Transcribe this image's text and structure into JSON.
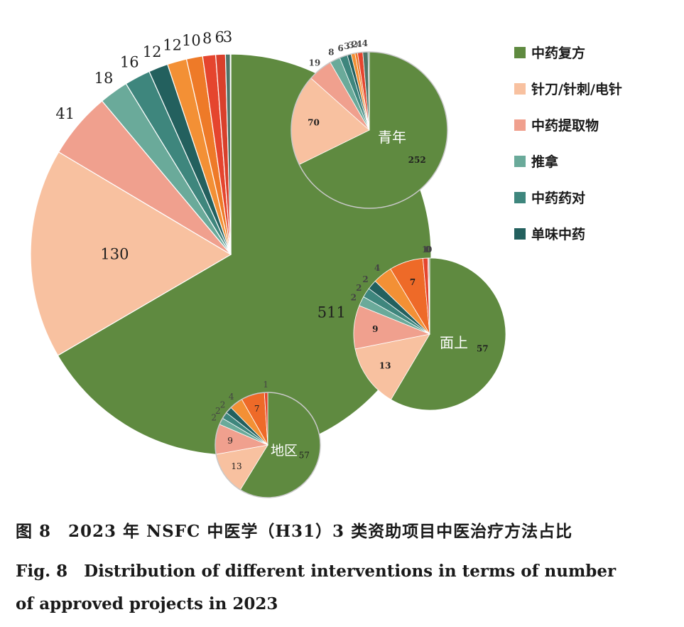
{
  "legend": [
    {
      "label": "中药复方",
      "color": "#5f8a40"
    },
    {
      "label": "针刀/针刺/电针",
      "color": "#f8c1a0"
    },
    {
      "label": "中药提取物",
      "color": "#f0a08e"
    },
    {
      "label": "推拿",
      "color": "#6aaa9a"
    },
    {
      "label": "中药药对",
      "color": "#3e867d"
    },
    {
      "label": "单味中药",
      "color": "#23605e"
    }
  ],
  "chart_data": [
    {
      "type": "pie",
      "name": "",
      "labels": [
        "中药复方",
        "针刀/针刺/电针",
        "中药提取物",
        "推拿",
        "中药药对",
        "单味中药",
        "",
        "",
        "",
        "",
        "",
        ""
      ],
      "values": [
        511,
        130,
        41,
        18,
        16,
        12,
        12,
        10,
        8,
        6,
        3,
        0.3
      ],
      "value_labels": [
        "511",
        "130",
        "41",
        "18",
        "16",
        "12",
        "12",
        "10",
        "8",
        "6",
        "3",
        ""
      ],
      "colors": [
        "#5f8a40",
        "#f8c1a0",
        "#f0a08e",
        "#6aaa9a",
        "#3e867d",
        "#23605e",
        "#f39035",
        "#ee7a28",
        "#e5452e",
        "#d9402c",
        "#4e7467",
        "#6f8f86"
      ]
    },
    {
      "type": "pie",
      "name": "青年",
      "labels": [
        "中药复方",
        "针刀/针刺/电针",
        "中药提取物",
        "推拿",
        "中药药对",
        "单味中药",
        "",
        "",
        "",
        "",
        ""
      ],
      "values": [
        252,
        70,
        19,
        8,
        6,
        3,
        3,
        2,
        4,
        4,
        1
      ],
      "value_labels": [
        "252",
        "70",
        "19",
        "8",
        "6",
        "3",
        "3",
        "2",
        "4",
        "4",
        ""
      ],
      "colors": [
        "#5f8a40",
        "#f8c1a0",
        "#f0a08e",
        "#6aaa9a",
        "#3e867d",
        "#23605e",
        "#f39035",
        "#ee7a28",
        "#e5452e",
        "#4e7467",
        "#6f8f86"
      ]
    },
    {
      "type": "pie",
      "name": "面上",
      "labels": [
        "中药复方",
        "针刀/针刺/电针",
        "中药提取物",
        "推拿",
        "中药药对",
        "单味中药",
        "",
        "",
        "",
        "",
        ""
      ],
      "values": [
        57,
        13,
        9,
        2,
        2,
        2,
        4,
        7,
        1,
        0.2,
        0.2
      ],
      "value_labels": [
        "57",
        "13",
        "9",
        "2",
        "2",
        "2",
        "4",
        "7",
        "1",
        "0",
        "0"
      ],
      "colors": [
        "#5f8a40",
        "#f8c1a0",
        "#f0a08e",
        "#6aaa9a",
        "#3e867d",
        "#23605e",
        "#f39035",
        "#ee6a28",
        "#e5452e",
        "#d9402c",
        "#4e7467"
      ]
    },
    {
      "type": "pie",
      "name": "地区",
      "labels": [
        "中药复方",
        "针刀/针刺/电针",
        "中药提取物",
        "推拿",
        "中药药对",
        "单味中药",
        "",
        "",
        ""
      ],
      "values": [
        57,
        13,
        9,
        2,
        2,
        2,
        4,
        7,
        1
      ],
      "value_labels": [
        "57",
        "13",
        "9",
        "2",
        "2",
        "2",
        "4",
        "7",
        "1"
      ],
      "colors": [
        "#5f8a40",
        "#f8c1a0",
        "#f0a08e",
        "#6aaa9a",
        "#3e867d",
        "#23605e",
        "#f39035",
        "#ee6a28",
        "#e5452e"
      ]
    }
  ],
  "caption": {
    "cn": "图 8　2023 年 NSFC 中医学（H31）3 类资助项目中医治疗方法占比",
    "en_line1": "Fig. 8　Distribution of different interventions in terms of  number",
    "en_line2": "of approved projects in 2023"
  }
}
